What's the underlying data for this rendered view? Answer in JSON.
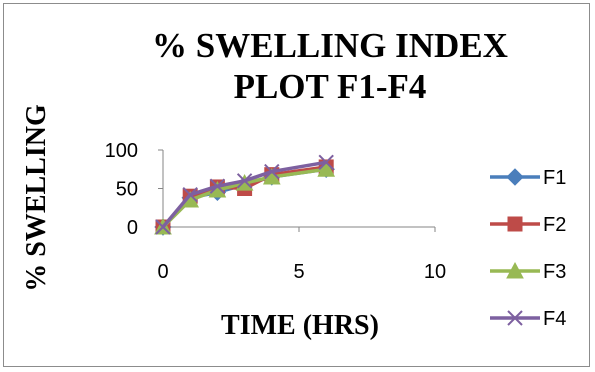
{
  "chart_data": {
    "type": "line",
    "title_lines": [
      "% SWELLING INDEX",
      "PLOT F1-F4"
    ],
    "xlabel": "TIME (HRS)",
    "ylabel": "% SWELLING",
    "xlim": [
      0,
      10
    ],
    "ylim": [
      0,
      100
    ],
    "xticks": [
      "0",
      "5",
      "10"
    ],
    "yticks": [
      "0",
      "50",
      "100"
    ],
    "grid": false,
    "legend_position": "right",
    "series": [
      {
        "name": "F1",
        "color": "#4a7ebb",
        "marker": "diamond",
        "x": [
          0,
          1,
          2,
          3,
          4,
          6
        ],
        "y": [
          0,
          38,
          45,
          55,
          65,
          75
        ]
      },
      {
        "name": "F2",
        "color": "#be4b48",
        "marker": "square",
        "x": [
          0,
          1,
          2,
          3,
          4,
          6
        ],
        "y": [
          0,
          40,
          52,
          50,
          68,
          78
        ]
      },
      {
        "name": "F3",
        "color": "#98b954",
        "marker": "triangle",
        "x": [
          0,
          1,
          2,
          3,
          4,
          6
        ],
        "y": [
          0,
          35,
          48,
          57,
          65,
          75
        ]
      },
      {
        "name": "F4",
        "color": "#7d60a0",
        "marker": "x",
        "x": [
          0,
          1,
          2,
          3,
          4,
          6
        ],
        "y": [
          0,
          42,
          53,
          60,
          72,
          84
        ]
      }
    ]
  }
}
